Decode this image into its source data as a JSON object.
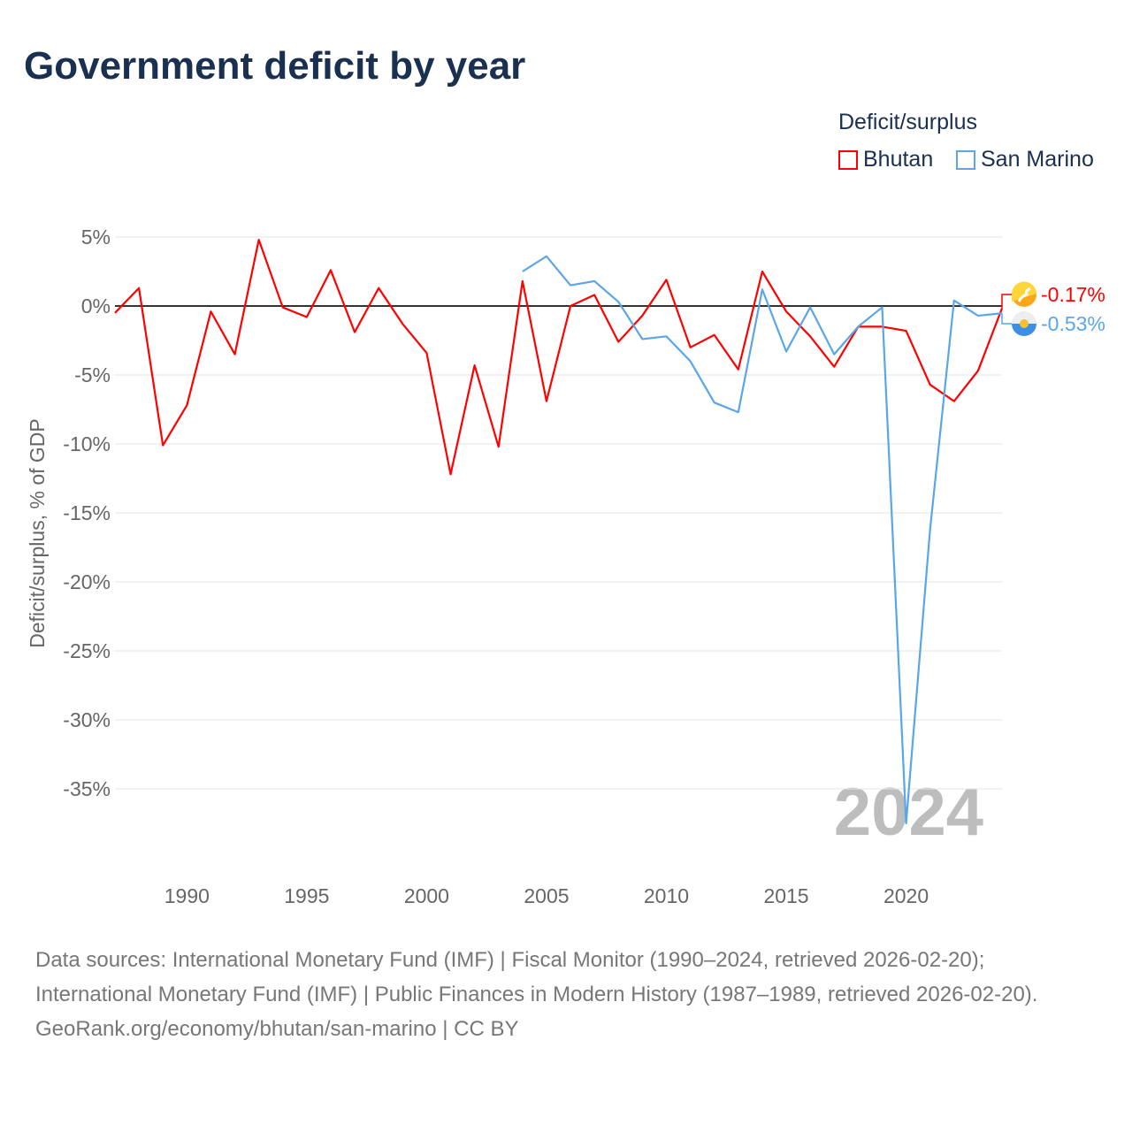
{
  "chart_data": {
    "type": "line",
    "title": "Government deficit by year",
    "ylabel": "Deficit/surplus, % of GDP",
    "xlabel": "",
    "legend_title": "Deficit/surplus",
    "legend_position": "top-right",
    "xlim": [
      1987,
      2024
    ],
    "ylim": [
      -40,
      5
    ],
    "x_ticks": [
      1990,
      1995,
      2000,
      2005,
      2010,
      2015,
      2020
    ],
    "y_ticks": [
      5,
      0,
      -5,
      -10,
      -15,
      -20,
      -25,
      -30,
      -35
    ],
    "y_tick_labels": [
      "5%",
      "0%",
      "-5%",
      "-10%",
      "-15%",
      "-20%",
      "-25%",
      "-30%",
      "-35%"
    ],
    "grid": true,
    "year_watermark": "2024",
    "series": [
      {
        "name": "Bhutan",
        "color": "#ff0000",
        "end_label": "-0.17%",
        "x": [
          1987,
          1988,
          1989,
          1990,
          1991,
          1992,
          1993,
          1994,
          1995,
          1996,
          1997,
          1998,
          1999,
          2000,
          2001,
          2002,
          2003,
          2004,
          2005,
          2006,
          2007,
          2008,
          2009,
          2010,
          2011,
          2012,
          2013,
          2014,
          2015,
          2016,
          2017,
          2018,
          2019,
          2020,
          2021,
          2022,
          2023,
          2024
        ],
        "values": [
          -0.5,
          1.3,
          -10.1,
          -7.2,
          -0.4,
          -3.5,
          4.8,
          -0.1,
          -0.8,
          2.6,
          -1.9,
          1.3,
          -1.3,
          -3.4,
          -12.2,
          -4.3,
          -10.2,
          1.8,
          -6.9,
          0.0,
          0.8,
          -2.6,
          -0.7,
          1.9,
          -3.0,
          -2.1,
          -4.6,
          2.5,
          -0.4,
          -2.2,
          -4.4,
          -1.5,
          -1.5,
          -1.8,
          -5.7,
          -6.9,
          -4.7,
          -0.17
        ]
      },
      {
        "name": "San Marino",
        "color": "#5aa6e8",
        "end_label": "-0.53%",
        "x": [
          2004,
          2005,
          2006,
          2007,
          2008,
          2009,
          2010,
          2011,
          2012,
          2013,
          2014,
          2015,
          2016,
          2017,
          2018,
          2019,
          2020,
          2021,
          2022,
          2023,
          2024
        ],
        "values": [
          2.5,
          3.6,
          1.5,
          1.8,
          0.3,
          -2.4,
          -2.2,
          -4.0,
          -7.0,
          -7.7,
          1.2,
          -3.3,
          -0.1,
          -3.5,
          -1.5,
          -0.1,
          -37.5,
          -16.2,
          0.4,
          -0.7,
          -0.53
        ]
      }
    ]
  },
  "footer": {
    "sources": "Data sources: International Monetary Fund (IMF) | Fiscal Monitor (1990–2024, retrieved 2026-02-20); International Monetary Fund (IMF) | Public Finances in Modern History (1987–1989, retrieved 2026-02-20).",
    "link": "GeoRank.org/economy/bhutan/san-marino | CC BY"
  }
}
